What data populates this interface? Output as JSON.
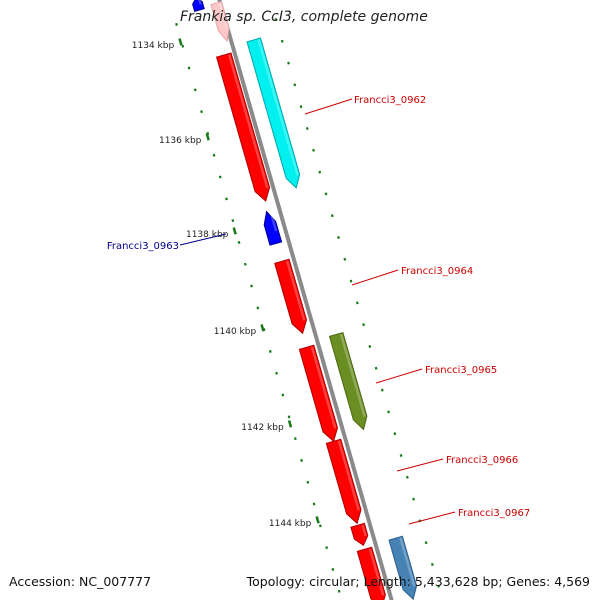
{
  "title": "Frankia sp. CcI3, complete genome",
  "footer": {
    "accession": "Accession: NC_007777",
    "topology": "Topology: circular; Length: 5,433,628 bp; Genes: 4,569"
  },
  "colors": {
    "backbone": "#8a8a8a",
    "tick": "#1a7a1a",
    "label_red": "#cc0000",
    "label_blue": "#00008b",
    "gene_red": "#ff0000",
    "gene_pink": "#ffc8c8",
    "gene_blue": "#0000ff",
    "gene_cyan": "#00f0f0",
    "gene_olive": "#6b8e23",
    "gene_steelblue": "#4682b4"
  },
  "ticks": [
    {
      "label": "1134 kbp"
    },
    {
      "label": "1136 kbp"
    },
    {
      "label": "1138 kbp"
    },
    {
      "label": "1140 kbp"
    },
    {
      "label": "1142 kbp"
    },
    {
      "label": "1144 kbp"
    }
  ],
  "genes": [
    {
      "name": "",
      "color": "gene_blue",
      "strand": "minus"
    },
    {
      "name": "",
      "color": "gene_pink",
      "strand": "plus"
    },
    {
      "name": "Francci3_0962",
      "color": "gene_red",
      "strand": "plus"
    },
    {
      "name": "",
      "color": "gene_cyan",
      "strand": "plus"
    },
    {
      "name": "Francci3_0963",
      "color": "gene_blue",
      "strand": "minus"
    },
    {
      "name": "Francci3_0964",
      "color": "gene_red",
      "strand": "plus"
    },
    {
      "name": "Francci3_0965",
      "color": "gene_red",
      "strand": "plus"
    },
    {
      "name": "",
      "color": "gene_olive",
      "strand": "plus"
    },
    {
      "name": "Francci3_0966",
      "color": "gene_red",
      "strand": "plus"
    },
    {
      "name": "Francci3_0967",
      "color": "gene_red",
      "strand": "plus"
    },
    {
      "name": "",
      "color": "gene_red",
      "strand": "plus"
    },
    {
      "name": "",
      "color": "gene_steelblue",
      "strand": "plus"
    }
  ]
}
